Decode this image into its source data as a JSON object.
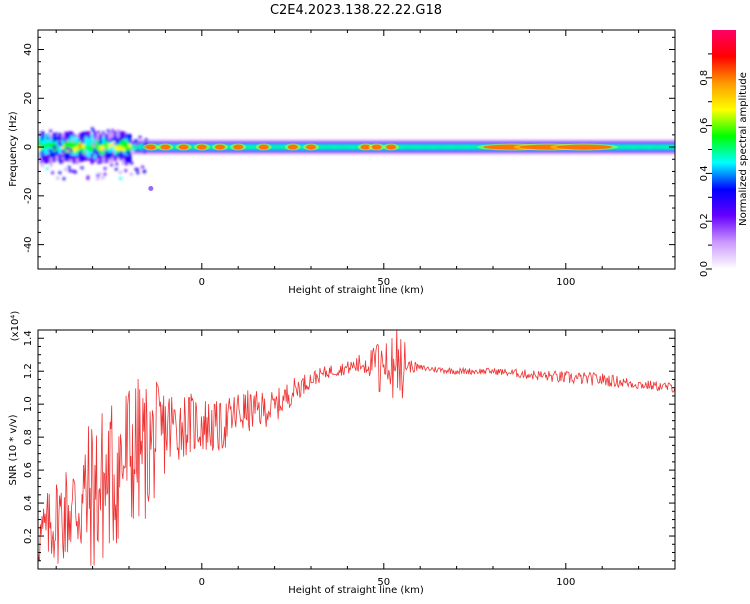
{
  "title": "C2E4.2023.138.22.22.G18",
  "chart_data": [
    {
      "type": "heatmap",
      "xlabel": "Height of straight line (km)",
      "ylabel": "Frequency (Hz)",
      "xlim": [
        -45,
        130
      ],
      "ylim": [
        -50,
        48
      ],
      "xticks": [
        0,
        50,
        100
      ],
      "yticks": [
        -40,
        -20,
        0,
        20,
        40
      ],
      "colorbar": {
        "label": "Normalized spectral amplitude",
        "range": [
          0,
          1
        ],
        "ticks": [
          "0.0",
          "0.2",
          "0.4",
          "0.6",
          "0.8"
        ],
        "colormap": [
          "#ffffff",
          "#cc99ff",
          "#6600ff",
          "#0000ff",
          "#00ffff",
          "#00ff00",
          "#ffff00",
          "#ff9900",
          "#ff0000",
          "#ff0066"
        ]
      },
      "band": {
        "center_frequency_hz": 0,
        "note_bands": [
          {
            "x_from": -45,
            "x_to": -20,
            "half_width_hz": 6,
            "amplitude": 0.5
          },
          {
            "x_from": -20,
            "x_to": 130,
            "half_width_hz": 3,
            "amplitude": 0.3
          }
        ],
        "hotspots_x_km": [
          -14,
          -10,
          -5,
          0,
          5,
          10,
          17,
          25,
          30,
          45,
          48,
          52,
          85,
          95,
          105
        ],
        "scatter_tail": {
          "x": -14,
          "y": -17
        }
      }
    },
    {
      "type": "line",
      "xlabel": "Height of straight line (km)",
      "ylabel": "SNR (10 * v/v)",
      "y_multiplier": "(x10⁴)",
      "xlim": [
        -45,
        130
      ],
      "ylim": [
        0.0,
        1.45
      ],
      "xticks": [
        0,
        50,
        100
      ],
      "yticks": [
        "0.2",
        "0.4",
        "0.6",
        "0.8",
        "1.0",
        "1.2",
        "1.4"
      ],
      "color": "#ee3333",
      "series": [
        {
          "x": [
            -45,
            -40,
            -35,
            -30,
            -25,
            -20,
            -15,
            -10,
            -5,
            0,
            5,
            10,
            15,
            20,
            25,
            30,
            35,
            40,
            45,
            50,
            55,
            60,
            70,
            80,
            90,
            100,
            110,
            120,
            130
          ],
          "y": [
            0.18,
            0.3,
            0.38,
            0.45,
            0.55,
            0.7,
            0.72,
            0.85,
            0.88,
            0.88,
            0.85,
            0.95,
            0.96,
            0.98,
            1.08,
            1.15,
            1.2,
            1.22,
            1.25,
            1.25,
            1.24,
            1.22,
            1.2,
            1.2,
            1.18,
            1.16,
            1.15,
            1.12,
            1.1
          ],
          "noise": [
            0.18,
            0.28,
            0.35,
            0.5,
            0.5,
            0.5,
            0.42,
            0.28,
            0.2,
            0.18,
            0.16,
            0.14,
            0.12,
            0.1,
            0.08,
            0.05,
            0.04,
            0.04,
            0.08,
            0.12,
            0.06,
            0.02,
            0.02,
            0.02,
            0.03,
            0.04,
            0.04,
            0.03,
            0.03
          ]
        }
      ]
    }
  ]
}
